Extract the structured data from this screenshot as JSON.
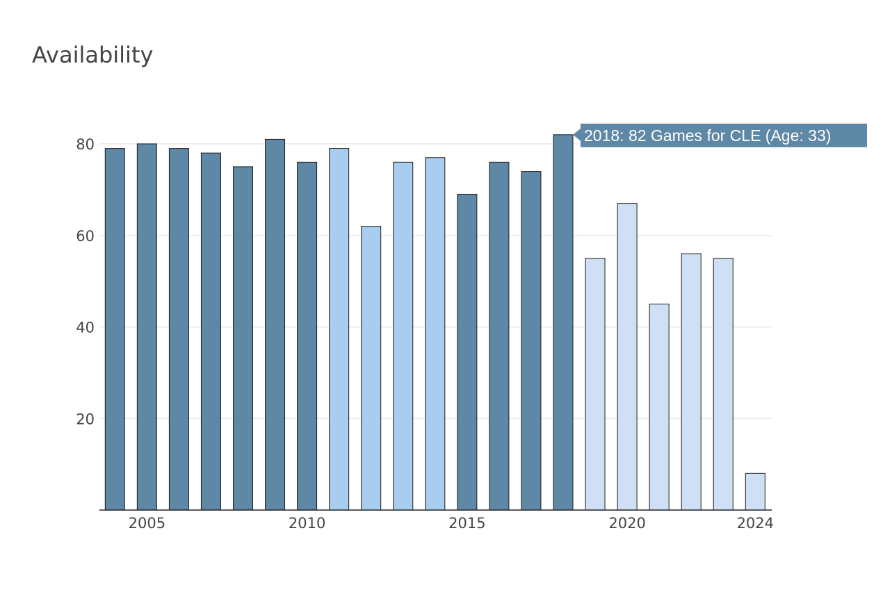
{
  "chart_data": {
    "type": "bar",
    "title": "Availability",
    "xlabel": "",
    "ylabel": "",
    "x": [
      2004,
      2005,
      2006,
      2007,
      2008,
      2009,
      2010,
      2011,
      2012,
      2013,
      2014,
      2015,
      2016,
      2017,
      2018,
      2019,
      2020,
      2021,
      2022,
      2023,
      2024
    ],
    "values": [
      79,
      80,
      79,
      78,
      75,
      81,
      76,
      79,
      62,
      76,
      77,
      69,
      76,
      74,
      82,
      55,
      67,
      45,
      56,
      55,
      8
    ],
    "bar_colors": [
      "#5e88a5",
      "#5e88a5",
      "#5e88a5",
      "#5e88a5",
      "#5e88a5",
      "#5e88a5",
      "#5e88a5",
      "#a8cdef",
      "#a8cdef",
      "#a8cdef",
      "#a8cdef",
      "#5e88a5",
      "#5e88a5",
      "#5e88a5",
      "#5e88a5",
      "#cfe0f4",
      "#cfe0f4",
      "#cfe0f4",
      "#cfe0f4",
      "#cfe0f4",
      "#cfe0f4"
    ],
    "ylim": [
      0,
      90
    ],
    "yticks": [
      20,
      40,
      60,
      80
    ],
    "xticks": [
      2005,
      2010,
      2015,
      2020,
      2024
    ],
    "grid": true,
    "tooltip": {
      "year": 2018,
      "text": "2018: 82 Games for CLE (Age: 33)",
      "color": "#5e88a5"
    }
  }
}
